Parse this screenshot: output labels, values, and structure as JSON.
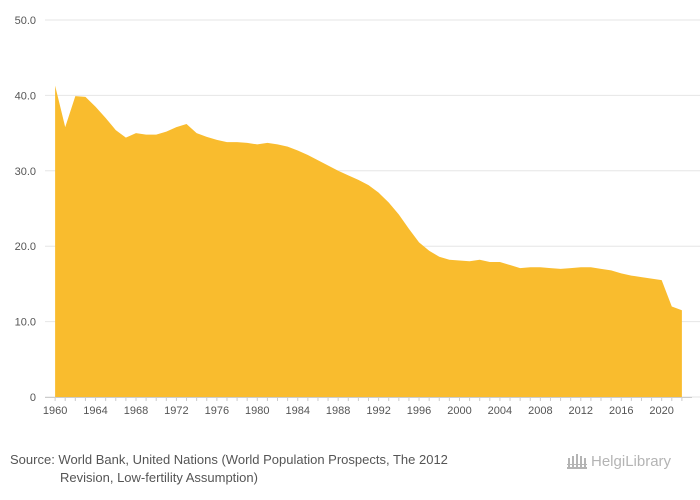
{
  "chart_data": {
    "type": "area",
    "title": "",
    "xlabel": "",
    "ylabel": "",
    "ylim": [
      0,
      50
    ],
    "xlim": [
      1959,
      2023
    ],
    "y_ticks": [
      "0",
      "10.0",
      "20.0",
      "30.0",
      "40.0",
      "50.0"
    ],
    "x_ticks": [
      "1960",
      "1964",
      "1968",
      "1972",
      "1976",
      "1980",
      "1984",
      "1988",
      "1992",
      "1996",
      "2000",
      "2004",
      "2008",
      "2012",
      "2016",
      "2020"
    ],
    "grid": true,
    "legend": "none",
    "series": [
      {
        "name": "",
        "color": "#f9bc2e",
        "x": [
          1960,
          1961,
          1962,
          1963,
          1964,
          1965,
          1966,
          1967,
          1968,
          1969,
          1970,
          1971,
          1972,
          1973,
          1974,
          1975,
          1976,
          1977,
          1978,
          1979,
          1980,
          1981,
          1982,
          1983,
          1984,
          1985,
          1986,
          1987,
          1988,
          1989,
          1990,
          1991,
          1992,
          1993,
          1994,
          1995,
          1996,
          1997,
          1998,
          1999,
          2000,
          2001,
          2002,
          2003,
          2004,
          2005,
          2006,
          2007,
          2008,
          2009,
          2010,
          2011,
          2012,
          2013,
          2014,
          2015,
          2016,
          2017,
          2018,
          2019,
          2020,
          2021,
          2022
        ],
        "values": [
          41.3,
          35.8,
          39.9,
          39.8,
          38.5,
          37.0,
          35.4,
          34.4,
          35.0,
          34.8,
          34.8,
          35.2,
          35.8,
          36.2,
          35.0,
          34.5,
          34.1,
          33.8,
          33.8,
          33.7,
          33.5,
          33.7,
          33.5,
          33.2,
          32.7,
          32.1,
          31.4,
          30.7,
          30.0,
          29.4,
          28.8,
          28.1,
          27.1,
          25.8,
          24.2,
          22.3,
          20.5,
          19.4,
          18.6,
          18.2,
          18.1,
          18.0,
          18.2,
          17.9,
          17.9,
          17.5,
          17.1,
          17.2,
          17.2,
          17.1,
          17.0,
          17.1,
          17.2,
          17.2,
          17.0,
          16.8,
          16.4,
          16.1,
          15.9,
          15.7,
          15.5,
          12.0,
          11.5
        ]
      }
    ]
  },
  "footer": {
    "source_line1": "Source: World Bank, United Nations (World Population Prospects, The 2012",
    "source_line2": "Revision, Low-fertility Assumption)",
    "logo_part1": "Helgi",
    "logo_part2": "Library"
  },
  "colors": {
    "area": "#f9bc2e",
    "grid": "#e6e6e6",
    "axis_text": "#555555",
    "logo": "#b4b4b4"
  }
}
